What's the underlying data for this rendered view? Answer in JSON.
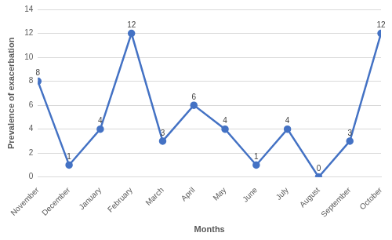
{
  "chart_data": {
    "type": "line",
    "x_label": "Months",
    "y_label": "Prevalence of exacerbation",
    "categories": [
      "November",
      "December",
      "January",
      "February",
      "March",
      "April",
      "May",
      "June",
      "July",
      "August",
      "September",
      "October"
    ],
    "values": [
      8,
      1,
      4,
      12,
      3,
      6,
      4,
      1,
      4,
      0,
      3,
      12
    ],
    "color": "#4472c4",
    "marker": "circle",
    "line_style": "solid",
    "ylim": [
      0,
      14
    ],
    "yticks": [
      0,
      2,
      4,
      6,
      8,
      10,
      12,
      14
    ],
    "grid": true,
    "data_labels": true
  }
}
